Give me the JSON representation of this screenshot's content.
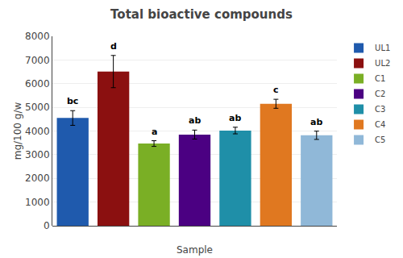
{
  "chart_data": {
    "type": "bar",
    "title": "Total bioactive compounds",
    "xlabel": "Sample",
    "ylabel": "mg/100 g/w",
    "categories": [
      "UL1",
      "UL2",
      "C1",
      "C2",
      "C3",
      "C4",
      "C5"
    ],
    "values": [
      4550,
      6510,
      3470,
      3850,
      4020,
      5150,
      3820
    ],
    "errors": [
      310,
      680,
      120,
      190,
      140,
      190,
      175
    ],
    "colors": [
      "#1F5AAD",
      "#8B1010",
      "#7AAF25",
      "#4B0082",
      "#1F8FA8",
      "#E07820",
      "#90B8D8"
    ],
    "annotations": [
      "bc",
      "d",
      "a",
      "ab",
      "ab",
      "c",
      "ab"
    ],
    "ylim": [
      0,
      8000
    ],
    "yticks": [
      0,
      1000,
      2000,
      3000,
      4000,
      5000,
      6000,
      7000,
      8000
    ],
    "grid": true,
    "legend": "right",
    "tick_labels": "y"
  }
}
